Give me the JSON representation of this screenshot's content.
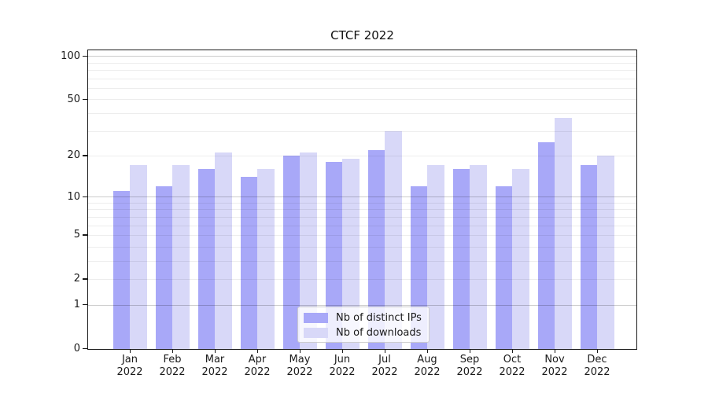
{
  "chart_data": {
    "type": "bar",
    "title": "CTCF 2022",
    "categories": [
      "Jan",
      "Feb",
      "Mar",
      "Apr",
      "May",
      "Jun",
      "Jul",
      "Aug",
      "Sep",
      "Oct",
      "Nov",
      "Dec"
    ],
    "category_year": "2022",
    "series": [
      {
        "name": "Nb of distinct IPs",
        "color": "#a8a8f8",
        "values": [
          11,
          12,
          16,
          14,
          20,
          18,
          22,
          12,
          16,
          12,
          25,
          17
        ]
      },
      {
        "name": "Nb of downloads",
        "color": "#d8d8f8",
        "values": [
          17,
          17,
          21,
          16,
          21,
          19,
          30,
          17,
          17,
          16,
          37,
          20
        ]
      }
    ],
    "xlabel": "",
    "ylabel": "",
    "yscale": "log10(value+1)",
    "ylim": [
      0,
      100
    ],
    "ytick_labels": [
      0,
      1,
      2,
      5,
      10,
      20,
      50,
      100
    ],
    "gridlines_minor": [
      2,
      3,
      4,
      5,
      6,
      7,
      8,
      9,
      20,
      30,
      40,
      50,
      60,
      70,
      80,
      90
    ],
    "gridlines_major": [
      1,
      10,
      100
    ],
    "grid": "on",
    "legend_position": "lower center, inside axes"
  },
  "colors": {
    "spine": "#1a1a1a",
    "bar_ips": "#a8a8f8",
    "bar_downloads": "#d8d8f8",
    "legend_border": "#cccccc",
    "text": "#1a1a1a"
  }
}
